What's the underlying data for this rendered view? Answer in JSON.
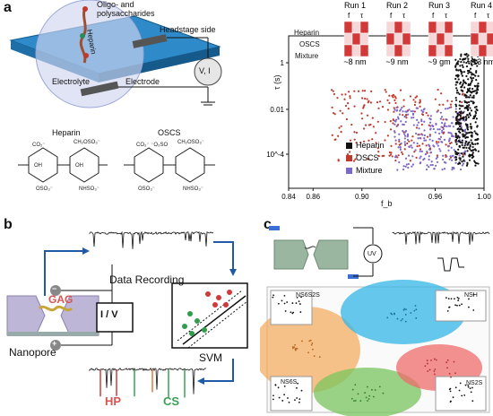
{
  "panel_a": {
    "label": "a",
    "schematic": {
      "molecule_label": "Oligo- and\npolysaccharides",
      "heparin_tag": "Heparin",
      "headstage": "Headstage side",
      "electrolyte": "Electrolyte",
      "electrode": "Electrode",
      "meter": "V, I"
    },
    "structures": {
      "heparin": "Heparin",
      "oscs": "OSCS"
    },
    "chart": {
      "xlabel": "f_b",
      "ylabel": "τ (s)",
      "x_ticks": [
        "0.84",
        "0.86",
        "0.90",
        "0.96",
        "1.00"
      ],
      "y_ticks": [
        "1",
        "0.01",
        "10^-4"
      ],
      "legend": [
        {
          "name": "Heparin",
          "color": "#111111"
        },
        {
          "name": "OSCS",
          "color": "#c0392b"
        },
        {
          "name": "Mixture",
          "color": "#7b68c8"
        }
      ],
      "runs": [
        {
          "title": "Run 1",
          "size": "~8 nm"
        },
        {
          "title": "Run 2",
          "size": "~9 nm"
        },
        {
          "title": "Run 3",
          "size": "~9 gm"
        },
        {
          "title": "Run 4",
          "size": "~13 nm"
        }
      ],
      "run_row_labels": [
        "Heparin",
        "OSCS",
        "Mixture"
      ],
      "run_col_labels": [
        "f",
        "τ"
      ]
    }
  },
  "panel_b": {
    "label": "b",
    "data_recording": "Data Recording",
    "gag": "GAG",
    "iv": "I / V",
    "nanopore": "Nanopore",
    "svm": "SVM",
    "hp": "HP",
    "cs": "CS",
    "minus": "−",
    "plus": "+"
  },
  "panel_c": {
    "label": "c",
    "meter": "UV",
    "regions": [
      "NS6S2S",
      "NSH",
      "NS6S",
      "NS2S"
    ]
  }
}
